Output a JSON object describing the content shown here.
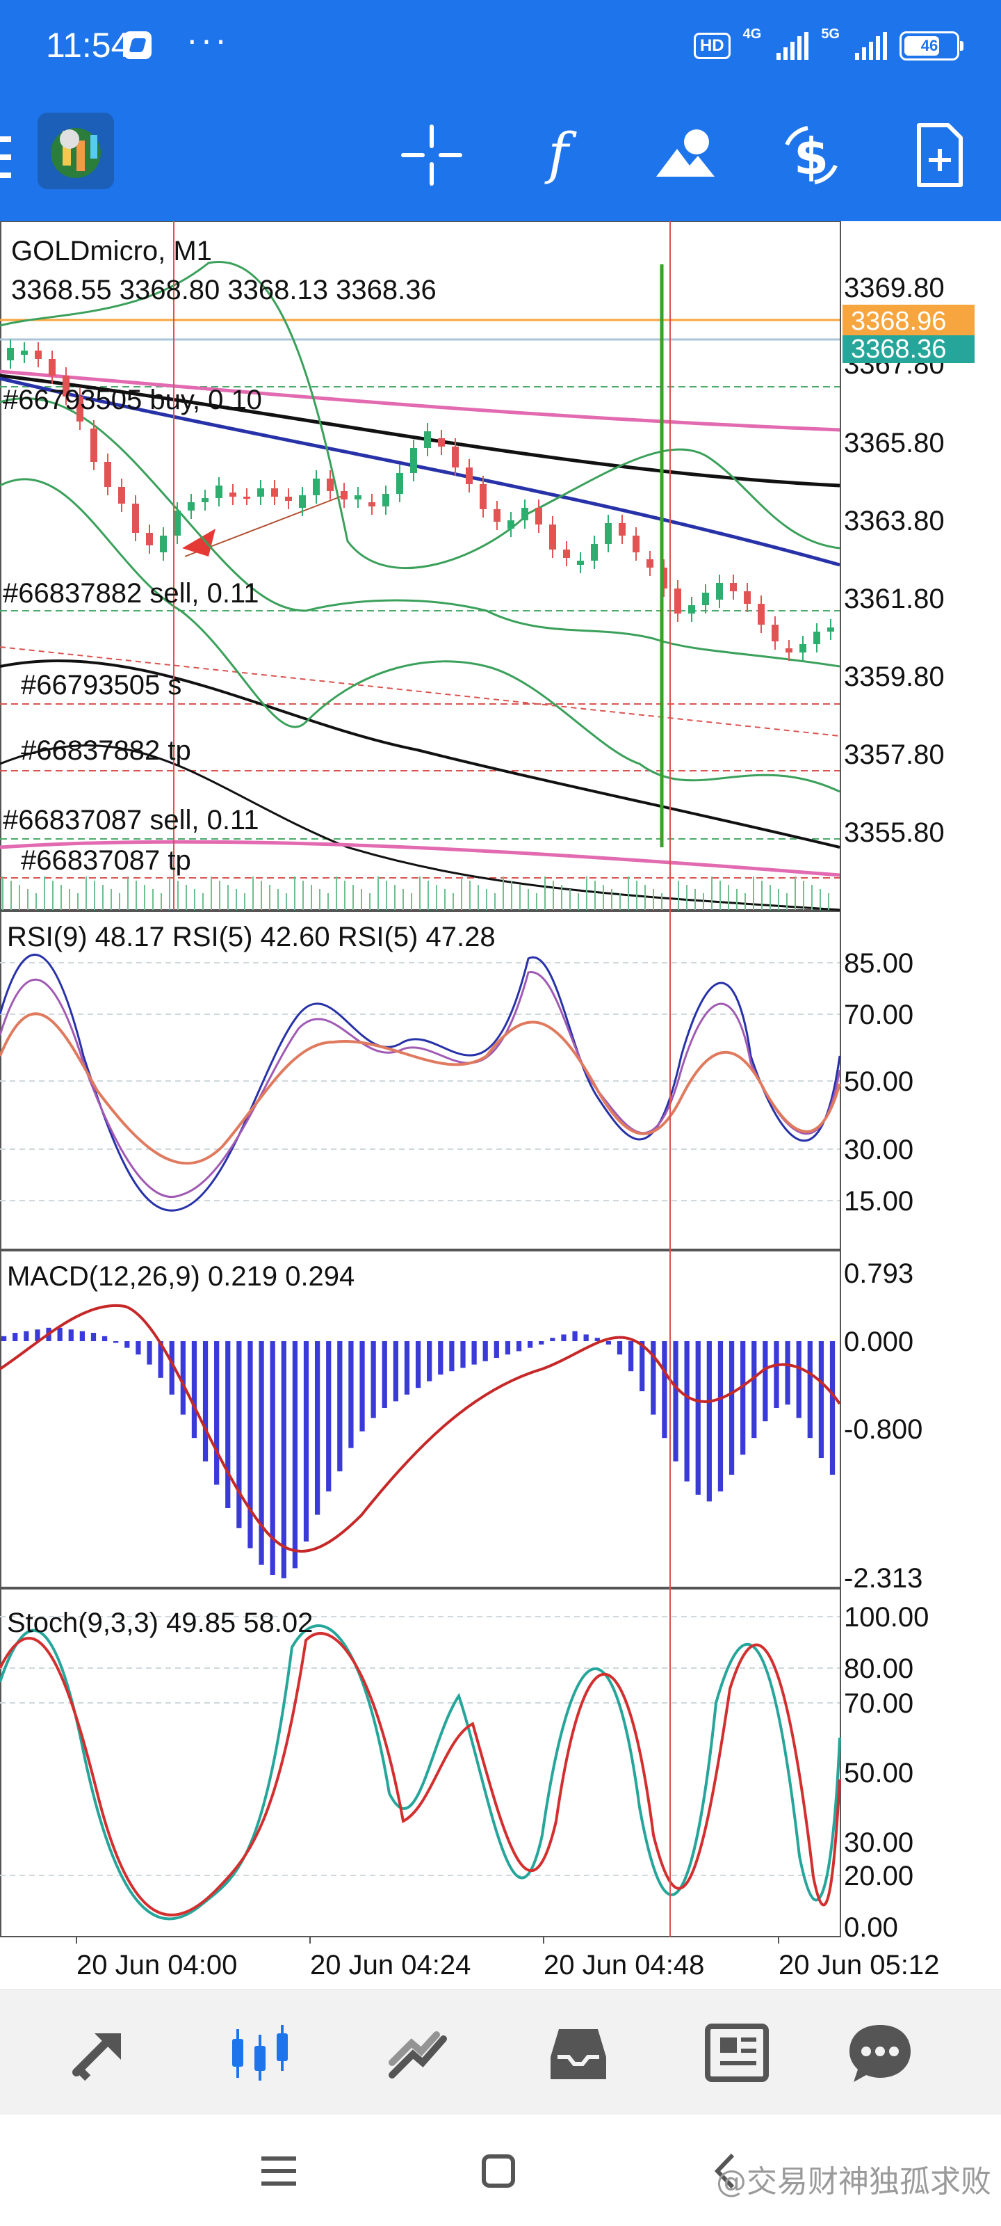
{
  "status_bar": {
    "time": "11:54",
    "dots": "···",
    "hd_badge": "HD",
    "network_1": "4G",
    "network_2": "5G",
    "battery": "46"
  },
  "toolbar": {
    "app_icon": "metatrader-icon",
    "buttons": [
      "crosshair-icon",
      "indicator-f-icon",
      "objects-icon",
      "trade-dollar-icon",
      "new-order-icon"
    ]
  },
  "chart": {
    "symbol_line": "GOLDmicro, M1",
    "ohlc_line": "3368.55 3368.80 3368.13 3368.36",
    "price_ticks": [
      "3369.80",
      "3367.80",
      "3365.80",
      "3363.80",
      "3361.80",
      "3359.80",
      "3357.80",
      "3355.80"
    ],
    "price_badges": {
      "ask": "3368.96",
      "bid": "3368.36",
      "ask_color": "#f7a53e",
      "bid_color": "#26a69a"
    },
    "order_labels": [
      "#66793505 buy, 0.10",
      "#66837882 sell, 0.11",
      "#66793505 s",
      "#66837882 tp",
      "#66837087 sell, 0.11",
      "#66837087 tp"
    ],
    "rsi_header": "RSI(9) 48.17 RSI(5) 42.60 RSI(5) 47.28",
    "rsi_ticks": [
      "85.00",
      "70.00",
      "50.00",
      "30.00",
      "15.00"
    ],
    "macd_header": "MACD(12,26,9) 0.219 0.294",
    "macd_ticks": [
      "0.793",
      "0.000",
      "-0.800",
      "-2.313"
    ],
    "stoch_header": "Stoch(9,3,3) 49.85 58.02",
    "stoch_ticks": [
      "100.00",
      "80.00",
      "70.00",
      "50.00",
      "30.00",
      "20.00",
      "0.00"
    ],
    "time_labels": [
      "20 Jun 04:00",
      "20 Jun 04:24",
      "20 Jun 04:48",
      "20 Jun 05:12"
    ]
  },
  "bottom_nav": [
    "quotes-icon",
    "chart-icon",
    "trade-icon",
    "history-icon",
    "news-icon",
    "messages-icon"
  ],
  "system_nav": {
    "watermark": "@交易财神独孤求败"
  }
}
